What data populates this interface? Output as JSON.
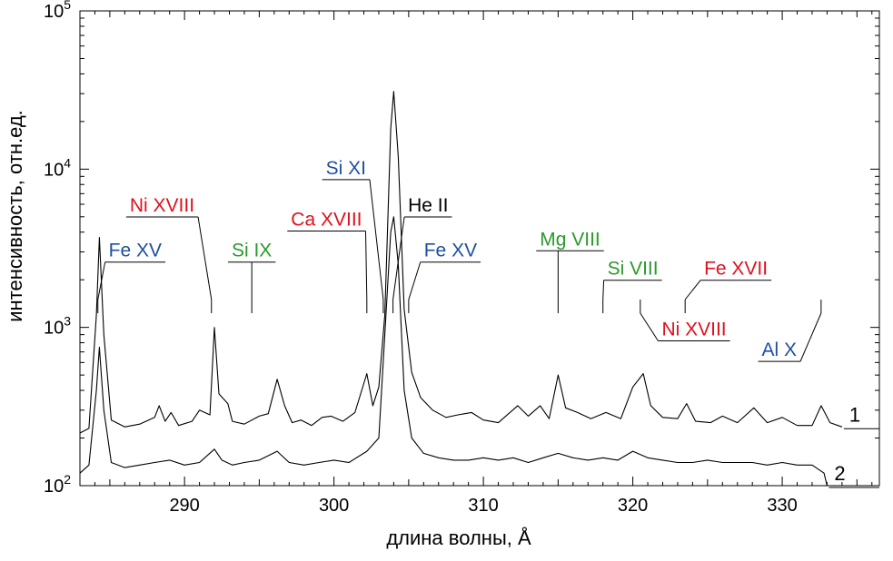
{
  "colors": {
    "blue": "#1f4fa0",
    "red": "#e0101a",
    "green": "#2a9a2a",
    "black": "#000000"
  },
  "chart_data": {
    "type": "line",
    "xlabel": "длина волны, Å",
    "ylabel": "интенсивность, отн.ед.",
    "xlim": [
      283,
      336.5
    ],
    "ylim": [
      100,
      100000
    ],
    "yscale": "log",
    "x_ticks": [
      290,
      300,
      310,
      320,
      330
    ],
    "y_ticks": [
      {
        "value": 100,
        "base": "10",
        "exp": "2"
      },
      {
        "value": 1000,
        "base": "10",
        "exp": "3"
      },
      {
        "value": 10000,
        "base": "10",
        "exp": "4"
      },
      {
        "value": 100000,
        "base": "10",
        "exp": "5"
      }
    ],
    "grid": false,
    "series_labels": [
      "1",
      "2"
    ],
    "series": [
      {
        "label": "1",
        "points": [
          [
            283,
            215
          ],
          [
            283.6,
            230
          ],
          [
            284.1,
            1200
          ],
          [
            284.3,
            3700
          ],
          [
            284.6,
            900
          ],
          [
            285.1,
            260
          ],
          [
            286,
            235
          ],
          [
            287,
            245
          ],
          [
            288,
            270
          ],
          [
            288.3,
            320
          ],
          [
            288.7,
            255
          ],
          [
            289.1,
            290
          ],
          [
            289.6,
            240
          ],
          [
            290.5,
            255
          ],
          [
            291,
            300
          ],
          [
            291.7,
            280
          ],
          [
            292,
            1000
          ],
          [
            292.3,
            380
          ],
          [
            292.9,
            330
          ],
          [
            293.2,
            255
          ],
          [
            294,
            245
          ],
          [
            295,
            275
          ],
          [
            295.6,
            285
          ],
          [
            296.2,
            470
          ],
          [
            296.7,
            320
          ],
          [
            297.2,
            250
          ],
          [
            297.8,
            260
          ],
          [
            298.5,
            240
          ],
          [
            299.2,
            270
          ],
          [
            299.8,
            275
          ],
          [
            300.6,
            255
          ],
          [
            301.4,
            290
          ],
          [
            302.2,
            510
          ],
          [
            302.6,
            320
          ],
          [
            303.0,
            420
          ],
          [
            303.4,
            1200
          ],
          [
            303.8,
            18000
          ],
          [
            304.0,
            31000
          ],
          [
            304.3,
            12000
          ],
          [
            304.7,
            1300
          ],
          [
            305.2,
            520
          ],
          [
            305.8,
            360
          ],
          [
            306.6,
            300
          ],
          [
            307.5,
            270
          ],
          [
            308.3,
            280
          ],
          [
            309.2,
            290
          ],
          [
            310,
            260
          ],
          [
            311,
            250
          ],
          [
            312.3,
            320
          ],
          [
            313,
            275
          ],
          [
            313.8,
            320
          ],
          [
            314.4,
            265
          ],
          [
            315.0,
            500
          ],
          [
            315.5,
            310
          ],
          [
            316.3,
            290
          ],
          [
            317.2,
            265
          ],
          [
            318.2,
            290
          ],
          [
            319.2,
            265
          ],
          [
            320.0,
            420
          ],
          [
            320.7,
            510
          ],
          [
            321.2,
            320
          ],
          [
            322.0,
            270
          ],
          [
            323.0,
            265
          ],
          [
            323.6,
            330
          ],
          [
            324.2,
            255
          ],
          [
            325.2,
            250
          ],
          [
            326.0,
            275
          ],
          [
            327.0,
            250
          ],
          [
            328.1,
            310
          ],
          [
            329.0,
            250
          ],
          [
            330.0,
            270
          ],
          [
            331.0,
            240
          ],
          [
            332.0,
            240
          ],
          [
            332.6,
            320
          ],
          [
            333.2,
            250
          ],
          [
            334,
            235
          ]
        ]
      },
      {
        "label": "2",
        "points": [
          [
            283,
            120
          ],
          [
            283.6,
            135
          ],
          [
            284.1,
            400
          ],
          [
            284.3,
            750
          ],
          [
            284.6,
            300
          ],
          [
            285.1,
            140
          ],
          [
            286,
            130
          ],
          [
            287,
            135
          ],
          [
            288,
            140
          ],
          [
            289,
            145
          ],
          [
            290,
            135
          ],
          [
            291,
            140
          ],
          [
            292,
            170
          ],
          [
            292.5,
            145
          ],
          [
            293.2,
            135
          ],
          [
            294,
            140
          ],
          [
            295,
            145
          ],
          [
            296.2,
            165
          ],
          [
            297,
            140
          ],
          [
            298,
            135
          ],
          [
            299,
            140
          ],
          [
            300,
            145
          ],
          [
            301,
            140
          ],
          [
            302.2,
            165
          ],
          [
            303.0,
            200
          ],
          [
            303.4,
            900
          ],
          [
            303.8,
            4000
          ],
          [
            304.0,
            5000
          ],
          [
            304.3,
            2500
          ],
          [
            304.7,
            400
          ],
          [
            305.2,
            200
          ],
          [
            306,
            160
          ],
          [
            307,
            150
          ],
          [
            308,
            145
          ],
          [
            309,
            145
          ],
          [
            310,
            150
          ],
          [
            311,
            145
          ],
          [
            312,
            150
          ],
          [
            313,
            140
          ],
          [
            314,
            150
          ],
          [
            315,
            160
          ],
          [
            316,
            150
          ],
          [
            317,
            145
          ],
          [
            318,
            150
          ],
          [
            319,
            145
          ],
          [
            320,
            165
          ],
          [
            321,
            150
          ],
          [
            322,
            145
          ],
          [
            323,
            140
          ],
          [
            324,
            140
          ],
          [
            325,
            145
          ],
          [
            326,
            140
          ],
          [
            327,
            140
          ],
          [
            328,
            140
          ],
          [
            329,
            135
          ],
          [
            330,
            140
          ],
          [
            331,
            135
          ],
          [
            332,
            135
          ],
          [
            332.8,
            120
          ],
          [
            333.0,
            100
          ]
        ]
      }
    ],
    "annotations": [
      {
        "text": "Fe XV",
        "color": "blue",
        "label_x": 286.7,
        "label_y": 2800,
        "target_x": 284.2
      },
      {
        "text": "Ni XVIII",
        "color": "red",
        "label_x": 288.5,
        "label_y": 5400,
        "target_x": 291.8
      },
      {
        "text": "Si IX",
        "color": "green",
        "label_x": 294.5,
        "label_y": 2800,
        "target_x": 294.5
      },
      {
        "text": "Ca XVIII",
        "color": "red",
        "label_x": 299.5,
        "label_y": 4400,
        "target_x": 302.2
      },
      {
        "text": "Si XI",
        "color": "blue",
        "label_x": 300.8,
        "label_y": 9300,
        "target_x": 303.3
      },
      {
        "text": "He II",
        "color": "black",
        "label_x": 306.3,
        "label_y": 5400,
        "target_x": 303.95
      },
      {
        "text": "Fe XV",
        "color": "blue",
        "label_x": 307.8,
        "label_y": 2800,
        "target_x": 305.0
      },
      {
        "text": "Mg VIII",
        "color": "green",
        "label_x": 315.8,
        "label_y": 3300,
        "target_x": 315.0
      },
      {
        "text": "Si VIII",
        "color": "green",
        "label_x": 320.0,
        "label_y": 2150,
        "target_x": 318.0
      },
      {
        "text": "Fe XVII",
        "color": "red",
        "label_x": 326.9,
        "label_y": 2150,
        "target_x": 323.5
      },
      {
        "text": "Ni XVIII",
        "color": "red",
        "label_x": 324.1,
        "label_y": 890,
        "target_x": 320.5
      },
      {
        "text": "Al X",
        "color": "blue",
        "label_x": 329.8,
        "label_y": 660,
        "target_x": 332.6
      }
    ]
  }
}
